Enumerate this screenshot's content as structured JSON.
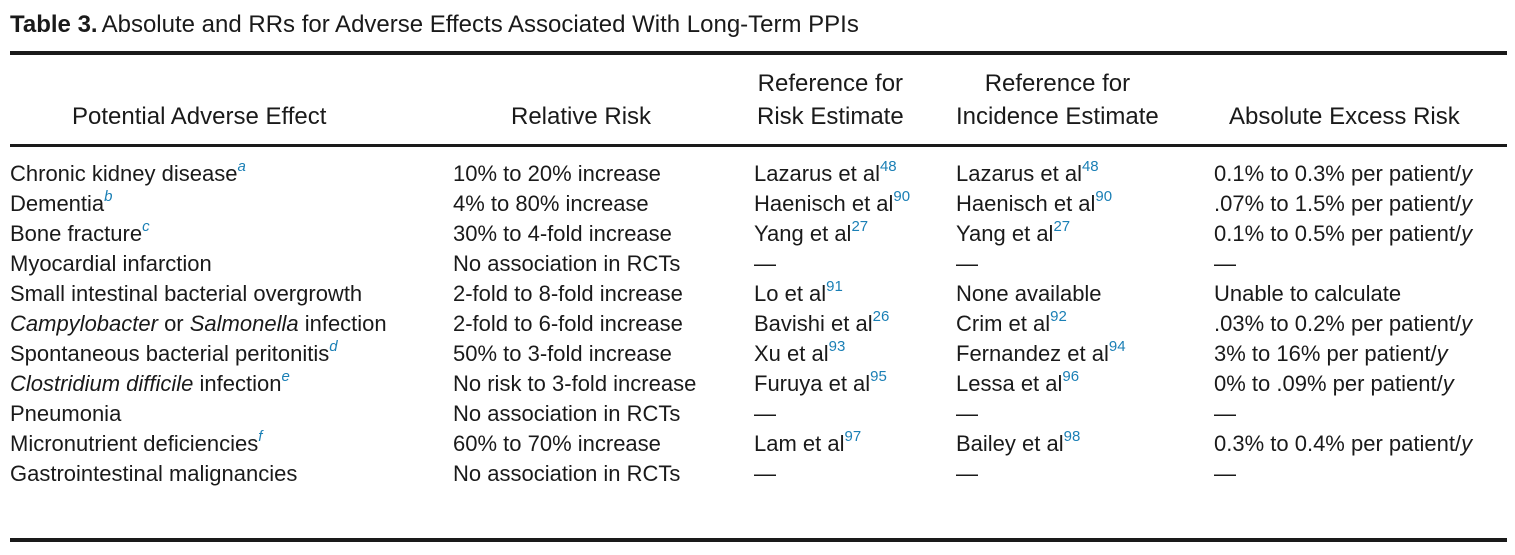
{
  "caption": {
    "label": "Table 3.",
    "title": "Absolute and RRs for Adverse Effects Associated With Long-Term PPIs"
  },
  "headers": {
    "effect": "Potential Adverse Effect",
    "relative_risk": "Relative Risk",
    "risk_ref_1": "Reference for",
    "risk_ref_2": "Risk Estimate",
    "inc_ref_1": "Reference for",
    "inc_ref_2": "Incidence Estimate",
    "abs_risk": "Absolute Excess Risk"
  },
  "rows": [
    {
      "effect": [
        {
          "t": "Chronic kidney disease"
        }
      ],
      "effect_note": "a",
      "rr": "10% to 20% increase",
      "risk_ref": "Lazarus et al",
      "risk_sup": "48",
      "inc_ref": "Lazarus et al",
      "inc_sup": "48",
      "abs": "0.1% to 0.3% per patient/",
      "abs_unit": "y"
    },
    {
      "effect": [
        {
          "t": "Dementia"
        }
      ],
      "effect_note": "b",
      "rr": "4% to 80% increase",
      "risk_ref": "Haenisch et al",
      "risk_sup": "90",
      "inc_ref": "Haenisch et al",
      "inc_sup": "90",
      "abs": ".07% to 1.5% per patient/",
      "abs_unit": "y"
    },
    {
      "effect": [
        {
          "t": "Bone fracture"
        }
      ],
      "effect_note": "c",
      "rr": "30% to 4-fold increase",
      "risk_ref": "Yang et al",
      "risk_sup": "27",
      "inc_ref": "Yang et al",
      "inc_sup": "27",
      "abs": "0.1% to 0.5% per patient/",
      "abs_unit": "y"
    },
    {
      "effect": [
        {
          "t": "Myocardial infarction"
        }
      ],
      "effect_note": "",
      "rr": "No association in RCTs",
      "risk_ref": "—",
      "risk_sup": "",
      "inc_ref": "—",
      "inc_sup": "",
      "abs": "—",
      "abs_unit": ""
    },
    {
      "effect": [
        {
          "t": "Small intestinal bacterial overgrowth"
        }
      ],
      "effect_note": "",
      "rr": "2-fold to 8-fold increase",
      "risk_ref": "Lo et al",
      "risk_sup": "91",
      "inc_ref": "None available",
      "inc_sup": "",
      "abs": "Unable to calculate",
      "abs_unit": ""
    },
    {
      "effect": [
        {
          "t": "Campylobacter",
          "i": true
        },
        {
          "t": " or "
        },
        {
          "t": "Salmonella",
          "i": true
        },
        {
          "t": " infection"
        }
      ],
      "effect_note": "",
      "rr": "2-fold to 6-fold increase",
      "risk_ref": "Bavishi et al",
      "risk_sup": "26",
      "inc_ref": "Crim et al",
      "inc_sup": "92",
      "abs": ".03% to 0.2% per patient/",
      "abs_unit": "y"
    },
    {
      "effect": [
        {
          "t": "Spontaneous bacterial peritonitis"
        }
      ],
      "effect_note": "d",
      "rr": "50% to 3-fold increase",
      "risk_ref": "Xu et al",
      "risk_sup": "93",
      "inc_ref": "Fernandez et al",
      "inc_sup": "94",
      "abs": "3% to 16% per patient/",
      "abs_unit": "y"
    },
    {
      "effect": [
        {
          "t": "Clostridium difficile",
          "i": true
        },
        {
          "t": " infection"
        }
      ],
      "effect_note": "e",
      "rr": "No risk to 3-fold increase",
      "risk_ref": "Furuya et al",
      "risk_sup": "95",
      "inc_ref": "Lessa et al",
      "inc_sup": "96",
      "abs": "0% to .09% per patient/",
      "abs_unit": "y"
    },
    {
      "effect": [
        {
          "t": "Pneumonia"
        }
      ],
      "effect_note": "",
      "rr": "No association in RCTs",
      "risk_ref": "—",
      "risk_sup": "",
      "inc_ref": "—",
      "inc_sup": "",
      "abs": "—",
      "abs_unit": ""
    },
    {
      "effect": [
        {
          "t": "Micronutrient deficiencies"
        }
      ],
      "effect_note": "f",
      "rr": "60% to 70% increase",
      "risk_ref": "Lam et al",
      "risk_sup": "97",
      "inc_ref": "Bailey et al",
      "inc_sup": "98",
      "abs": "0.3% to 0.4% per patient/",
      "abs_unit": "y"
    },
    {
      "effect": [
        {
          "t": "Gastrointestinal malignancies"
        }
      ],
      "effect_note": "",
      "rr": "No association in RCTs",
      "risk_ref": "—",
      "risk_sup": "",
      "inc_ref": "—",
      "inc_sup": "",
      "abs": "—",
      "abs_unit": ""
    }
  ],
  "colors": {
    "text": "#1a1a1a",
    "reference_link": "#1a7fb5"
  }
}
